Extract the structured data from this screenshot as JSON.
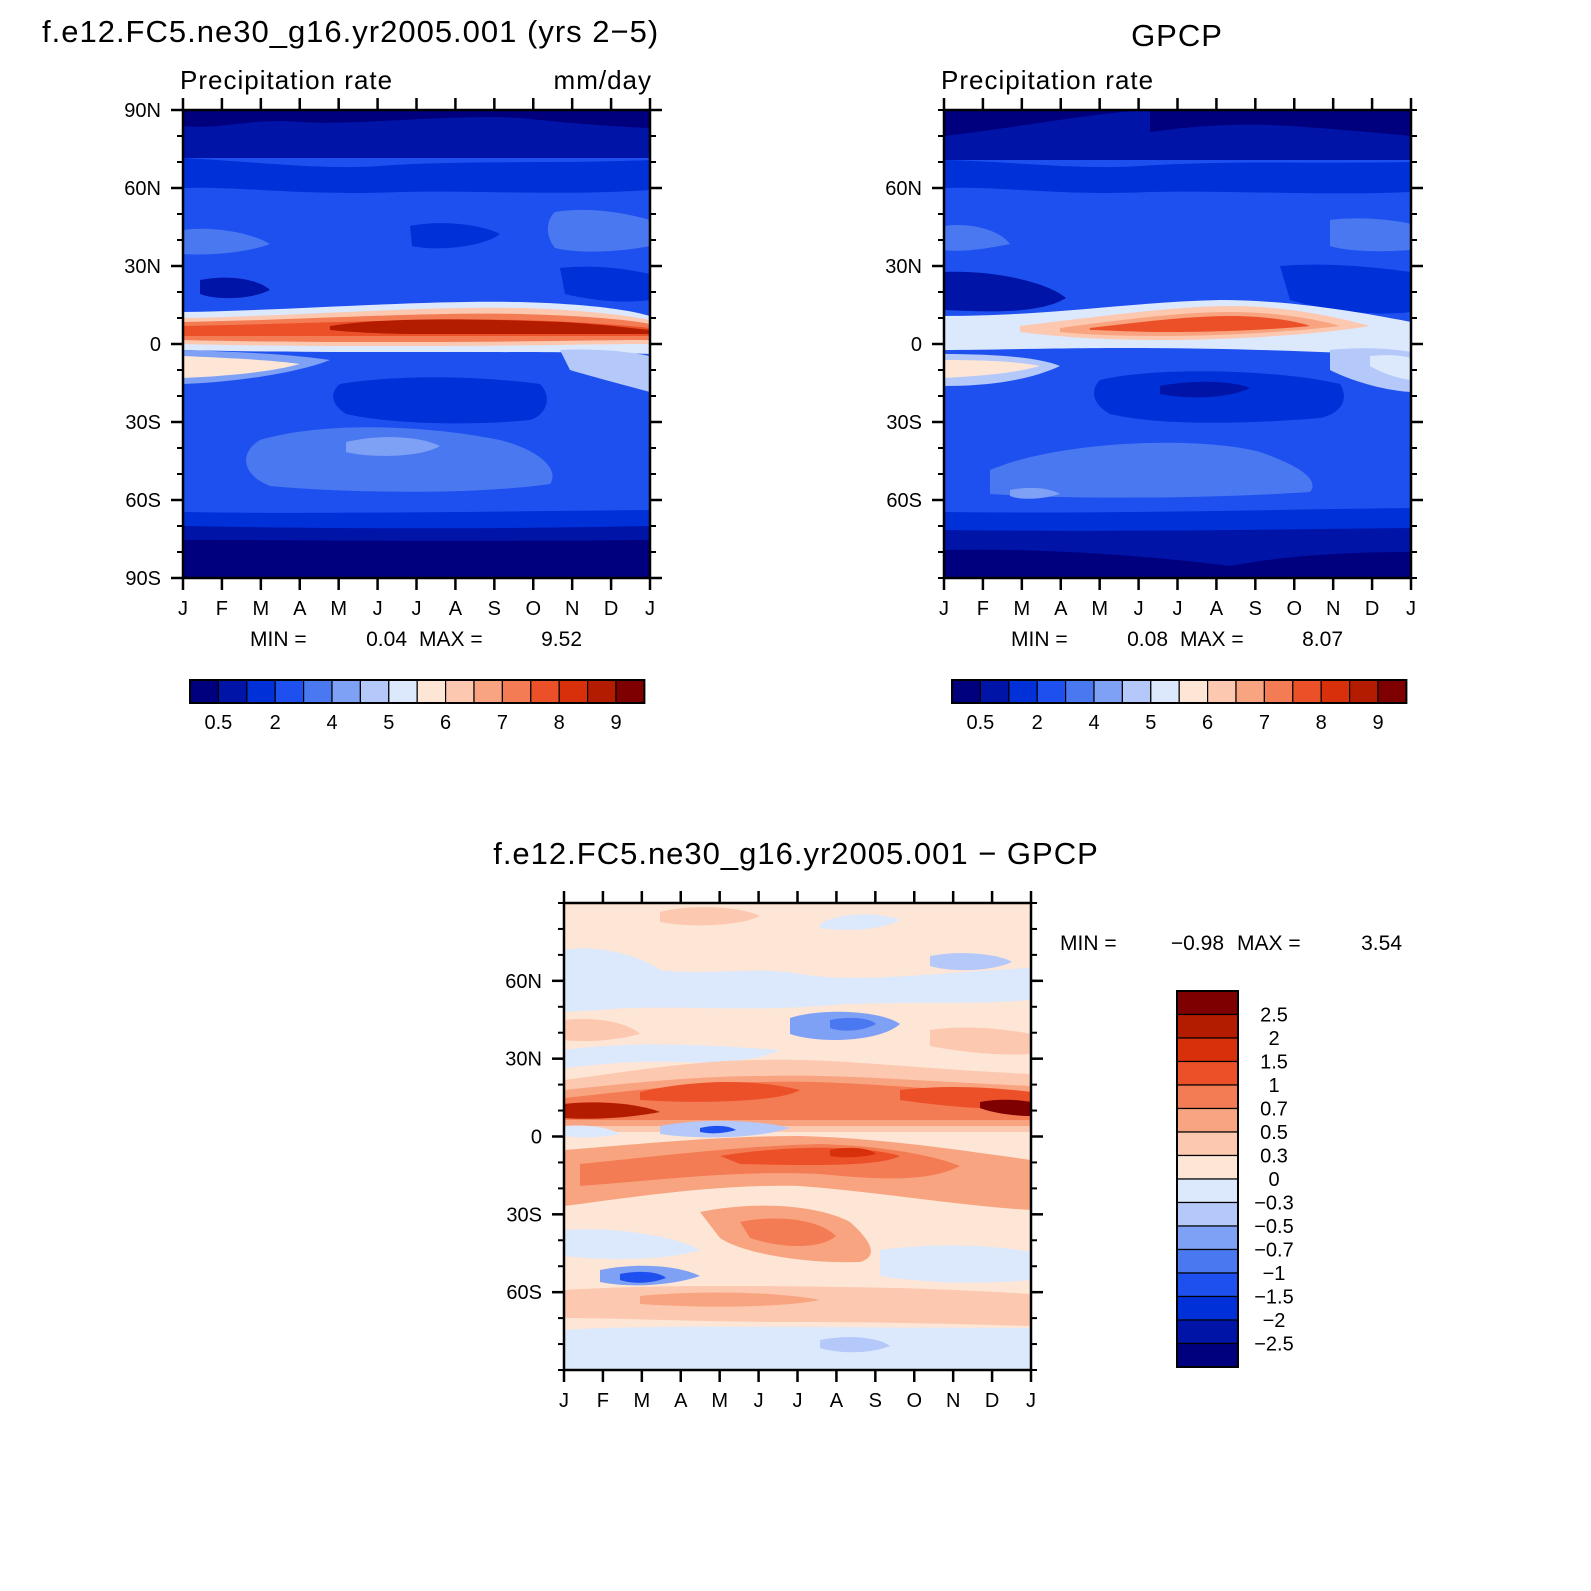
{
  "chart_data": [
    {
      "type": "heatmap",
      "title": "f.e12.FC5.ne30_g16.yr2005.001 (yrs 2−5)",
      "left_string": "Precipitation rate",
      "right_string": "mm/day",
      "x_ticks": [
        "J",
        "F",
        "M",
        "A",
        "M",
        "J",
        "J",
        "A",
        "S",
        "O",
        "N",
        "D",
        "J"
      ],
      "y_ticks": [
        {
          "value": 90,
          "label": "90N"
        },
        {
          "value": 60,
          "label": "60N"
        },
        {
          "value": 30,
          "label": "30N"
        },
        {
          "value": 0,
          "label": "0"
        },
        {
          "value": -30,
          "label": "30S"
        },
        {
          "value": -60,
          "label": "60S"
        },
        {
          "value": -90,
          "label": "90S"
        }
      ],
      "ylim": [
        -90,
        90
      ],
      "stats": {
        "min_label": "MIN =",
        "min": "0.04",
        "max_label": "MAX =",
        "max": "9.52"
      },
      "colorbar_labels": [
        "0.5",
        "2",
        "4",
        "5",
        "6",
        "7",
        "8",
        "9"
      ],
      "colorbar_colors": [
        "#00007f",
        "#0014a8",
        "#0030d8",
        "#1e50f0",
        "#4a78f0",
        "#7ea0f5",
        "#b4c8fa",
        "#dce8fc",
        "#fde6d6",
        "#fcc8b0",
        "#f9a480",
        "#f37c54",
        "#ec5028",
        "#d8300a",
        "#b41c00",
        "#7e0000"
      ]
    },
    {
      "type": "heatmap",
      "title": "GPCP",
      "left_string": "Precipitation rate",
      "right_string": "",
      "x_ticks": [
        "J",
        "F",
        "M",
        "A",
        "M",
        "J",
        "J",
        "A",
        "S",
        "O",
        "N",
        "D",
        "J"
      ],
      "y_ticks": [
        {
          "value": 60,
          "label": "60N"
        },
        {
          "value": 30,
          "label": "30N"
        },
        {
          "value": 0,
          "label": "0"
        },
        {
          "value": -30,
          "label": "30S"
        },
        {
          "value": -60,
          "label": "60S"
        }
      ],
      "ylim": [
        -90,
        90
      ],
      "stats": {
        "min_label": "MIN =",
        "min": "0.08",
        "max_label": "MAX =",
        "max": "8.07"
      },
      "colorbar_labels": [
        "0.5",
        "2",
        "4",
        "5",
        "6",
        "7",
        "8",
        "9"
      ],
      "colorbar_colors": [
        "#00007f",
        "#0014a8",
        "#0030d8",
        "#1e50f0",
        "#4a78f0",
        "#7ea0f5",
        "#b4c8fa",
        "#dce8fc",
        "#fde6d6",
        "#fcc8b0",
        "#f9a480",
        "#f37c54",
        "#ec5028",
        "#d8300a",
        "#b41c00",
        "#7e0000"
      ]
    },
    {
      "type": "heatmap",
      "title": "f.e12.FC5.ne30_g16.yr2005.001 − GPCP",
      "x_ticks": [
        "J",
        "F",
        "M",
        "A",
        "M",
        "J",
        "J",
        "A",
        "S",
        "O",
        "N",
        "D",
        "J"
      ],
      "y_ticks": [
        {
          "value": 60,
          "label": "60N"
        },
        {
          "value": 30,
          "label": "30N"
        },
        {
          "value": 0,
          "label": "0"
        },
        {
          "value": -30,
          "label": "30S"
        },
        {
          "value": -60,
          "label": "60S"
        }
      ],
      "ylim": [
        -90,
        90
      ],
      "stats": {
        "min_label": "MIN =",
        "min": "−0.98",
        "max_label": "MAX =",
        "max": "3.54"
      },
      "colorbar_labels": [
        "2.5",
        "2",
        "1.5",
        "1",
        "0.7",
        "0.5",
        "0.3",
        "0",
        "−0.3",
        "−0.5",
        "−0.7",
        "−1",
        "−1.5",
        "−2",
        "−2.5"
      ],
      "colorbar_colors": [
        "#7e0000",
        "#b41c00",
        "#d8300a",
        "#ec5028",
        "#f37c54",
        "#f9a480",
        "#fcc8b0",
        "#fde6d6",
        "#dce8fc",
        "#b4c8fa",
        "#7ea0f5",
        "#4a78f0",
        "#1e50f0",
        "#0030d8",
        "#0014a8",
        "#00007f"
      ]
    }
  ]
}
